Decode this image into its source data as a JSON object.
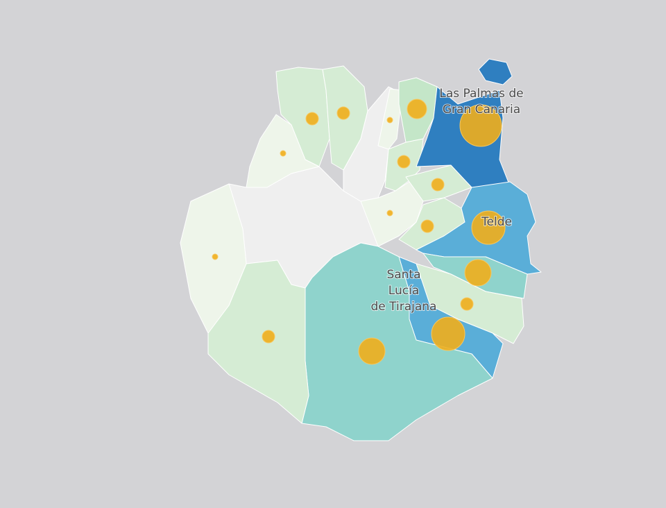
{
  "map": {
    "labels": [
      {
        "lines": [
          "Las Palmas de",
          "Gran Canaria"
        ]
      },
      {
        "lines": [
          "Telde"
        ]
      },
      {
        "lines": [
          "Santa",
          "Lucía",
          "de Tirajana"
        ]
      }
    ]
  }
}
